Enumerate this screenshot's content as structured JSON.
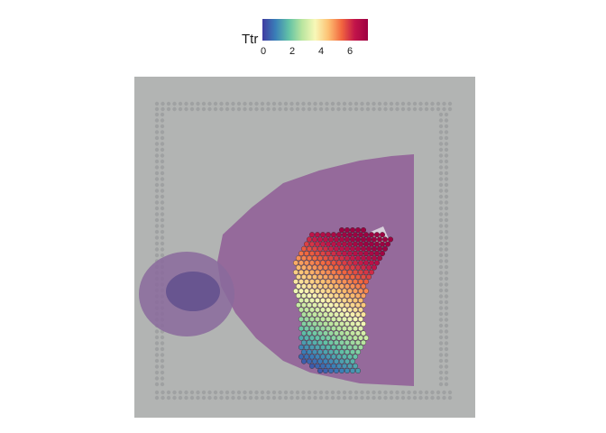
{
  "legend": {
    "title": "Ttr",
    "ticks": [
      "0",
      "2",
      "4",
      "6"
    ],
    "scale_min": 0,
    "scale_max": 7.2,
    "palette": [
      "#3f3ba0",
      "#3a7fb8",
      "#62c2a6",
      "#b9e59f",
      "#f8f8b8",
      "#fdc173",
      "#f2673f",
      "#c2144a",
      "#9e0142"
    ]
  },
  "image": {
    "background_color": "#b2b4b3",
    "tissue_color": "#8f5d97",
    "spot_array_color": "#9fa1a2"
  }
}
